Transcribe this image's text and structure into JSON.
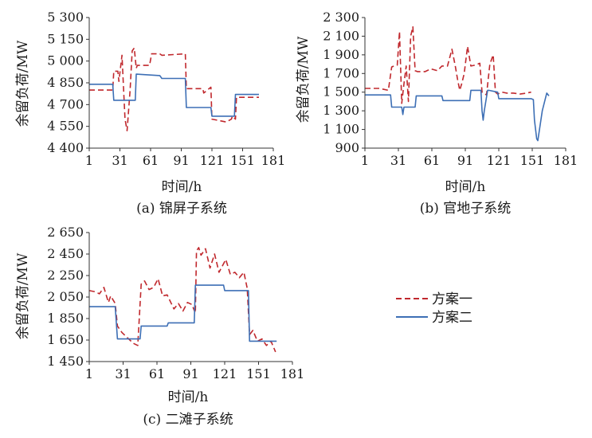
{
  "legend": {
    "items": [
      {
        "label": "方案一",
        "color": "#c0282d",
        "dash": "7,4"
      },
      {
        "label": "方案二",
        "color": "#3d6fb5",
        "dash": ""
      }
    ]
  },
  "chart_data": [
    {
      "type": "line",
      "caption": "(a) 锦屏子系统",
      "xlabel": "时间/h",
      "ylabel": "余留负荷/MW",
      "xlim": [
        1,
        181
      ],
      "ylim": [
        4400,
        5300
      ],
      "xticks": [
        1,
        31,
        61,
        91,
        121,
        151,
        181
      ],
      "yticks": [
        4400,
        4550,
        4700,
        4850,
        5000,
        5150,
        5300
      ],
      "ytick_labels": [
        "4 400",
        "4 550",
        "4 700",
        "4 850",
        "5 000",
        "5 150",
        "5 300"
      ],
      "series": [
        {
          "name": "方案一",
          "x": [
            1,
            24,
            25,
            29,
            30,
            33,
            34,
            36,
            38,
            41,
            43,
            45,
            47,
            48,
            60,
            62,
            70,
            72,
            95,
            96,
            112,
            113,
            120,
            121,
            128,
            135,
            140,
            141,
            144,
            145,
            167
          ],
          "y": [
            4800,
            4800,
            4930,
            4930,
            4860,
            5040,
            4900,
            4600,
            4520,
            4800,
            5070,
            5090,
            4950,
            4970,
            4970,
            5050,
            5050,
            5040,
            5050,
            4810,
            4810,
            4780,
            4820,
            4600,
            4590,
            4580,
            4600,
            4620,
            4600,
            4750,
            4750
          ]
        },
        {
          "name": "方案二",
          "x": [
            1,
            24,
            25,
            46,
            47,
            70,
            72,
            95,
            96,
            120,
            121,
            143,
            144,
            167
          ],
          "y": [
            4840,
            4840,
            4730,
            4730,
            4910,
            4900,
            4880,
            4880,
            4680,
            4680,
            4620,
            4620,
            4770,
            4770
          ]
        }
      ]
    },
    {
      "type": "line",
      "caption": "(b) 官地子系统",
      "xlabel": "时间/h",
      "ylabel": "余留负荷/MW",
      "xlim": [
        1,
        181
      ],
      "ylim": [
        900,
        2300
      ],
      "xticks": [
        1,
        31,
        61,
        91,
        121,
        151,
        181
      ],
      "yticks": [
        900,
        1100,
        1300,
        1500,
        1700,
        1900,
        2100,
        2300
      ],
      "ytick_labels": [
        "900",
        "1 100",
        "1 300",
        "1 500",
        "1 700",
        "1 900",
        "2 100",
        "2 300"
      ],
      "series": [
        {
          "name": "方案一",
          "x": [
            1,
            14,
            22,
            25,
            27,
            30,
            32,
            34,
            36,
            38,
            40,
            42,
            44,
            46,
            48,
            55,
            60,
            66,
            70,
            75,
            79,
            82,
            84,
            86,
            88,
            90,
            93,
            96,
            100,
            104,
            106,
            110,
            113,
            116,
            118,
            120,
            124,
            128,
            134,
            140,
            146,
            150
          ],
          "y": [
            1540,
            1540,
            1520,
            1770,
            1780,
            1790,
            2150,
            1380,
            1590,
            1780,
            1400,
            2100,
            2200,
            1730,
            1720,
            1720,
            1750,
            1730,
            1780,
            1780,
            1960,
            1780,
            1640,
            1520,
            1600,
            1700,
            1990,
            1780,
            1790,
            1810,
            1500,
            1470,
            1800,
            1900,
            1500,
            1480,
            1500,
            1490,
            1490,
            1480,
            1490,
            1500
          ]
        },
        {
          "name": "方案二",
          "x": [
            1,
            24,
            25,
            34,
            35,
            36,
            46,
            47,
            70,
            71,
            95,
            96,
            105,
            106,
            107,
            108,
            111,
            112,
            120,
            121,
            150,
            152,
            153,
            155,
            156,
            160,
            164,
            166
          ],
          "y": [
            1470,
            1470,
            1340,
            1340,
            1260,
            1340,
            1340,
            1460,
            1460,
            1410,
            1410,
            1520,
            1520,
            1300,
            1200,
            1300,
            1520,
            1520,
            1500,
            1430,
            1430,
            1420,
            1200,
            1000,
            980,
            1300,
            1490,
            1460
          ]
        }
      ]
    },
    {
      "type": "line",
      "caption": "(c) 二滩子系统",
      "xlabel": "时间/h",
      "ylabel": "余留负荷/MW",
      "xlim": [
        1,
        181
      ],
      "ylim": [
        1450,
        2650
      ],
      "xticks": [
        1,
        31,
        61,
        91,
        121,
        151,
        181
      ],
      "yticks": [
        1450,
        1650,
        1850,
        2050,
        2250,
        2450,
        2650
      ],
      "ytick_labels": [
        "1 450",
        "1 650",
        "1 850",
        "2 050",
        "2 250",
        "2 450",
        "2 650"
      ],
      "series": [
        {
          "name": "方案一",
          "x": [
            1,
            6,
            10,
            14,
            18,
            20,
            24,
            26,
            30,
            40,
            44,
            47,
            50,
            54,
            58,
            62,
            66,
            70,
            76,
            80,
            84,
            88,
            92,
            95,
            96,
            98,
            100,
            104,
            108,
            112,
            116,
            122,
            126,
            130,
            134,
            138,
            141,
            143,
            146,
            150,
            154,
            158,
            162,
            166
          ],
          "y": [
            2110,
            2100,
            2080,
            2140,
            2000,
            2060,
            1990,
            1780,
            1720,
            1620,
            1600,
            2170,
            2200,
            2120,
            2140,
            2220,
            2060,
            2070,
            1940,
            1990,
            1920,
            2000,
            1980,
            1900,
            2480,
            2510,
            2440,
            2500,
            2320,
            2450,
            2280,
            2400,
            2260,
            2280,
            2230,
            2280,
            2130,
            1700,
            1740,
            1640,
            1660,
            1600,
            1640,
            1540
          ]
        },
        {
          "name": "方案二",
          "x": [
            1,
            24,
            26,
            27,
            46,
            47,
            70,
            71,
            94,
            95,
            120,
            121,
            142,
            143,
            167
          ],
          "y": [
            1960,
            1960,
            1660,
            1660,
            1660,
            1780,
            1780,
            1810,
            1810,
            2160,
            2160,
            2110,
            2110,
            1640,
            1640
          ]
        }
      ]
    }
  ]
}
